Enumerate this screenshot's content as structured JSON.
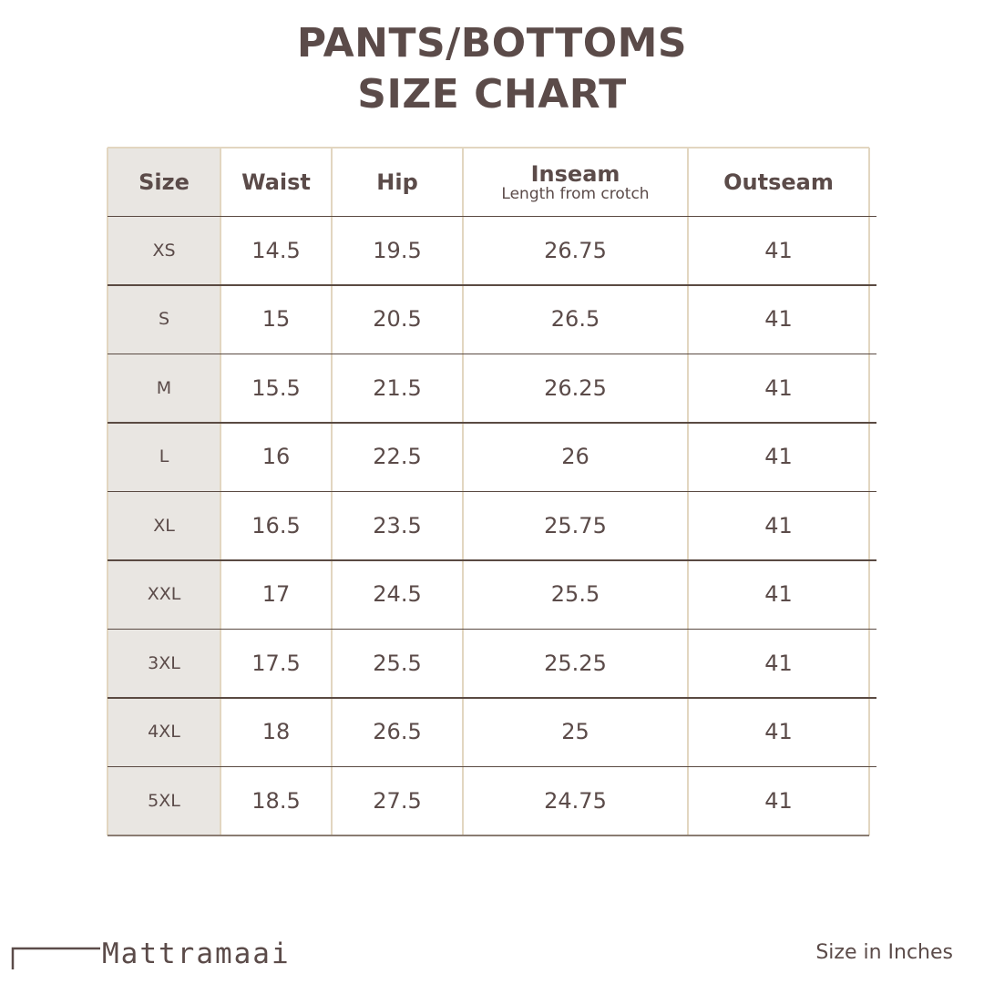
{
  "title_line1": "PANTS/BOTTOMS",
  "title_line2": "SIZE CHART",
  "table": {
    "headers": [
      {
        "label": "Size",
        "sub": ""
      },
      {
        "label": "Waist",
        "sub": ""
      },
      {
        "label": "Hip",
        "sub": ""
      },
      {
        "label": "Inseam",
        "sub": "Length from crotch"
      },
      {
        "label": "Outseam",
        "sub": ""
      }
    ],
    "rows": [
      [
        "XS",
        "14.5",
        "19.5",
        "26.75",
        "41"
      ],
      [
        "S",
        "15",
        "20.5",
        "26.5",
        "41"
      ],
      [
        "M",
        "15.5",
        "21.5",
        "26.25",
        "41"
      ],
      [
        "L",
        "16",
        "22.5",
        "26",
        "41"
      ],
      [
        "XL",
        "16.5",
        "23.5",
        "25.75",
        "41"
      ],
      [
        "XXL",
        "17",
        "24.5",
        "25.5",
        "41"
      ],
      [
        "3XL",
        "17.5",
        "25.5",
        "25.25",
        "41"
      ],
      [
        "4XL",
        "18",
        "26.5",
        "25",
        "41"
      ],
      [
        "5XL",
        "18.5",
        "27.5",
        "24.75",
        "41"
      ]
    ]
  },
  "logo": "Mattramaai",
  "units_note": "Size in Inches",
  "colors": {
    "text": "#5b4b49",
    "size_column_bg": "#e9e6e2",
    "column_border": "#e2d6c0",
    "row_border": "#5a4a42"
  }
}
